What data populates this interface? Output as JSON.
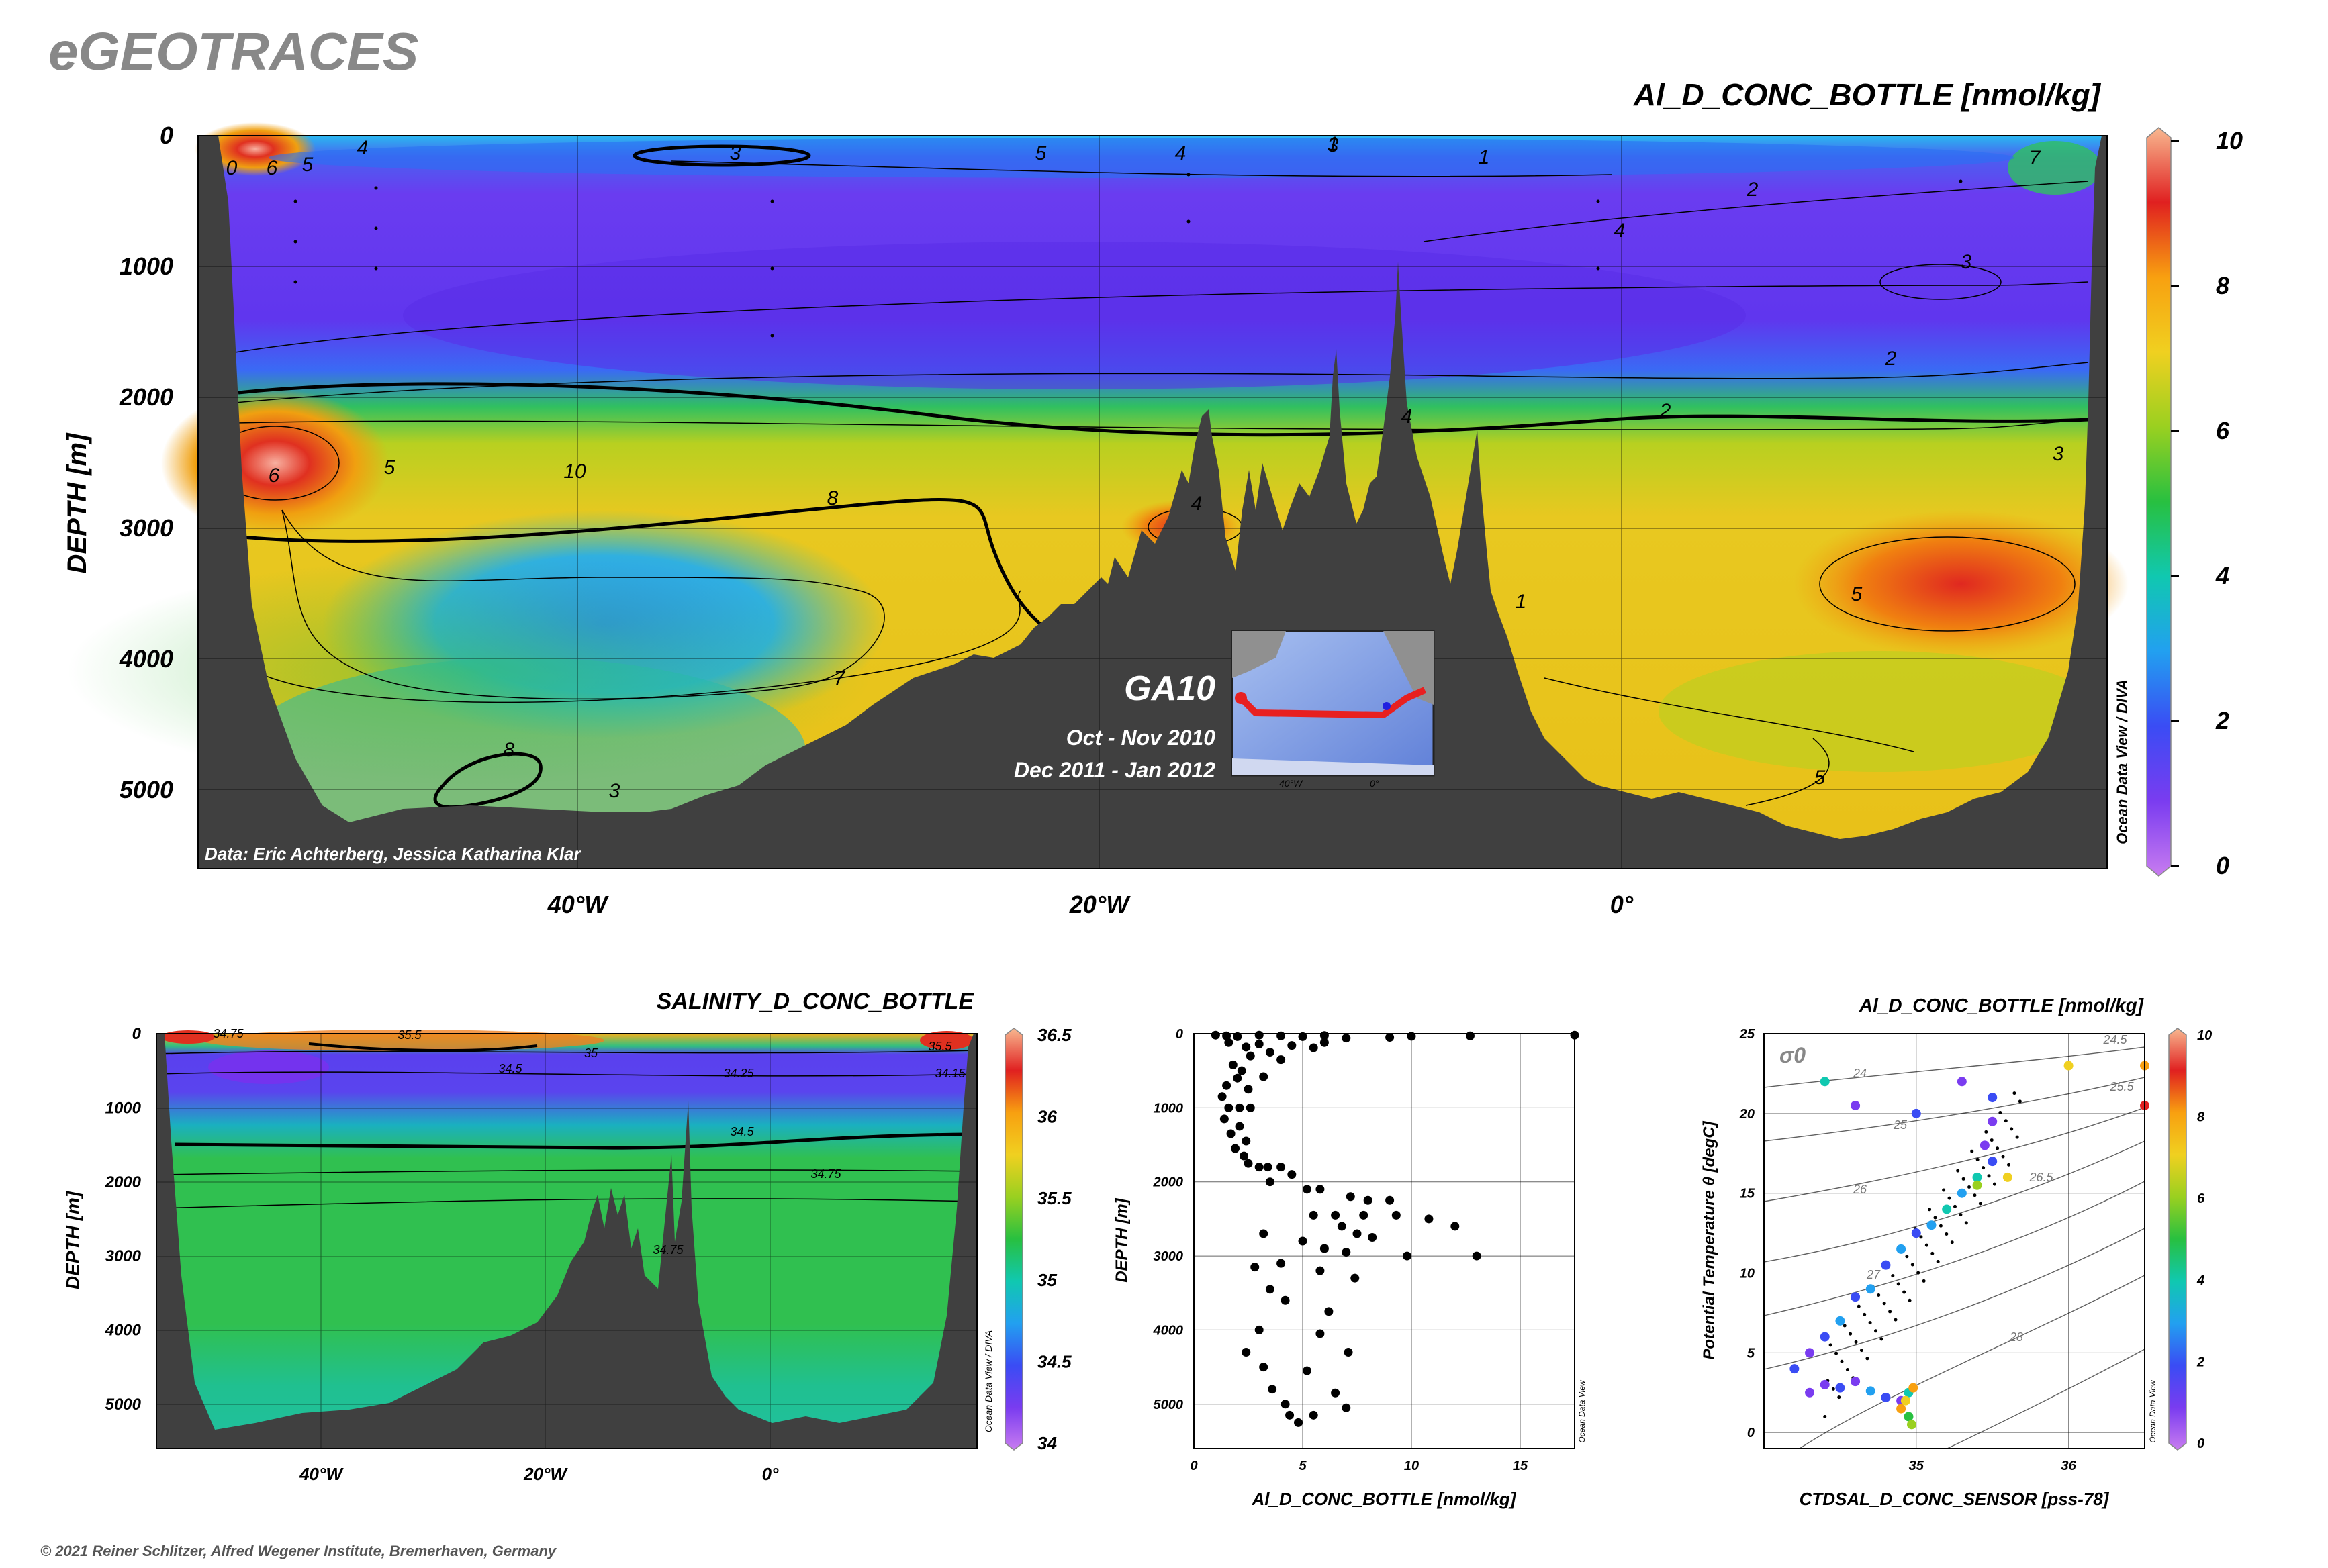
{
  "header": {
    "logo": "eGEOTRACES",
    "copyright": "© 2021 Reiner Schlitzer, Alfred Wegener Institute, Bremerhaven, Germany"
  },
  "colors": {
    "land": "#404040",
    "scale": [
      "#c87cf0",
      "#7a3cf0",
      "#3a4cf4",
      "#22a0f0",
      "#10c8b0",
      "#28c040",
      "#9ad020",
      "#f0d020",
      "#f8a010",
      "#e02020",
      "#f8b890"
    ]
  },
  "chart_data": [
    {
      "type": "heatmap",
      "id": "main-section",
      "title": "Al_D_CONC_BOTTLE [nmol/kg]",
      "ylabel": "DEPTH [m]",
      "x_ticks": [
        "40°W",
        "20°W",
        "0°"
      ],
      "y_ticks": [
        "0",
        "1000",
        "2000",
        "3000",
        "4000",
        "5000"
      ],
      "ylim": [
        0,
        5600
      ],
      "colorbar": {
        "min": 0,
        "max": 10,
        "ticks": [
          "0",
          "2",
          "4",
          "6",
          "8",
          "10"
        ]
      },
      "contour_labels": [
        "0",
        "6",
        "5",
        "4",
        "3",
        "5",
        "4",
        "3",
        "1",
        "2",
        "4",
        "3",
        "2",
        "2",
        "3",
        "4",
        "6",
        "5",
        "10",
        "8",
        "1",
        "5",
        "7",
        "8",
        "3",
        "5",
        "4",
        "7",
        "1"
      ],
      "credit": "Data: Eric Achterberg, Jessica Katharina Klar",
      "watermark": "Ocean Data View / DIVA",
      "inset": {
        "cruise": "GA10",
        "dates": [
          "Oct - Nov 2010",
          "Dec 2011 - Jan 2012"
        ],
        "ticks": [
          "40°W",
          "0°"
        ]
      }
    },
    {
      "type": "heatmap",
      "id": "salinity-section",
      "title": "SALINITY_D_CONC_BOTTLE",
      "ylabel": "DEPTH [m]",
      "x_ticks": [
        "40°W",
        "20°W",
        "0°"
      ],
      "y_ticks": [
        "0",
        "1000",
        "2000",
        "3000",
        "4000",
        "5000"
      ],
      "colorbar": {
        "min": 34,
        "max": 36.5,
        "ticks": [
          "34",
          "34.5",
          "35",
          "35.5",
          "36",
          "36.5"
        ]
      },
      "contour_labels": [
        "34.75",
        "35.5",
        "35",
        "34.5",
        "34.25",
        "35.5",
        "34.15",
        "34.5",
        "34.75",
        "34.75"
      ],
      "watermark": "Ocean Data View / DIVA"
    },
    {
      "type": "scatter",
      "id": "depth-profile",
      "xlabel": "Al_D_CONC_BOTTLE [nmol/kg]",
      "ylabel": "DEPTH [m]",
      "x_ticks": [
        "0",
        "5",
        "10",
        "15"
      ],
      "y_ticks": [
        "0",
        "1000",
        "2000",
        "3000",
        "4000",
        "5000"
      ],
      "xlim": [
        0,
        17.5
      ],
      "ylim": [
        0,
        5600
      ],
      "points": [
        [
          1.0,
          20
        ],
        [
          1.5,
          30
        ],
        [
          2.0,
          40
        ],
        [
          3.0,
          20
        ],
        [
          4.0,
          30
        ],
        [
          5.0,
          40
        ],
        [
          6.0,
          25
        ],
        [
          7.0,
          60
        ],
        [
          9.0,
          50
        ],
        [
          10.0,
          35
        ],
        [
          12.7,
          30
        ],
        [
          17.5,
          20
        ],
        [
          1.6,
          120
        ],
        [
          2.4,
          180
        ],
        [
          3.0,
          140
        ],
        [
          4.5,
          160
        ],
        [
          5.5,
          190
        ],
        [
          6.0,
          120
        ],
        [
          3.5,
          250
        ],
        [
          2.6,
          300
        ],
        [
          4.0,
          350
        ],
        [
          1.8,
          420
        ],
        [
          2.2,
          500
        ],
        [
          2.0,
          600
        ],
        [
          3.2,
          580
        ],
        [
          1.5,
          700
        ],
        [
          2.5,
          750
        ],
        [
          1.3,
          850
        ],
        [
          1.6,
          1000
        ],
        [
          2.1,
          1000
        ],
        [
          2.6,
          1000
        ],
        [
          1.4,
          1150
        ],
        [
          2.1,
          1250
        ],
        [
          1.7,
          1350
        ],
        [
          2.4,
          1450
        ],
        [
          1.9,
          1550
        ],
        [
          2.3,
          1650
        ],
        [
          2.5,
          1750
        ],
        [
          3.0,
          1800
        ],
        [
          3.4,
          1800
        ],
        [
          4.0,
          1800
        ],
        [
          4.5,
          1900
        ],
        [
          3.5,
          2000
        ],
        [
          5.2,
          2100
        ],
        [
          5.8,
          2100
        ],
        [
          7.2,
          2200
        ],
        [
          8.0,
          2250
        ],
        [
          9.0,
          2250
        ],
        [
          5.5,
          2450
        ],
        [
          6.5,
          2450
        ],
        [
          7.8,
          2450
        ],
        [
          9.3,
          2450
        ],
        [
          10.8,
          2500
        ],
        [
          6.8,
          2600
        ],
        [
          7.5,
          2700
        ],
        [
          8.2,
          2750
        ],
        [
          12.0,
          2600
        ],
        [
          3.2,
          2700
        ],
        [
          5.0,
          2800
        ],
        [
          6.0,
          2900
        ],
        [
          7.0,
          2950
        ],
        [
          9.8,
          3000
        ],
        [
          13.0,
          3000
        ],
        [
          4.0,
          3100
        ],
        [
          2.8,
          3150
        ],
        [
          5.8,
          3200
        ],
        [
          7.4,
          3300
        ],
        [
          3.5,
          3450
        ],
        [
          4.2,
          3600
        ],
        [
          6.2,
          3750
        ],
        [
          3.0,
          4000
        ],
        [
          5.8,
          4050
        ],
        [
          2.4,
          4300
        ],
        [
          7.1,
          4300
        ],
        [
          3.2,
          4500
        ],
        [
          5.2,
          4550
        ],
        [
          3.6,
          4800
        ],
        [
          6.5,
          4850
        ],
        [
          4.2,
          5000
        ],
        [
          5.5,
          5150
        ],
        [
          4.8,
          5250
        ],
        [
          4.4,
          5150
        ],
        [
          7.0,
          5050
        ]
      ],
      "watermark": "Ocean Data View"
    },
    {
      "type": "scatter",
      "id": "ts-diagram",
      "title": "Al_D_CONC_BOTTLE [nmol/kg]",
      "xlabel": "CTDSAL_D_CONC_SENSOR [pss-78]",
      "ylabel": "Potential Temperature θ [degC]",
      "x_ticks": [
        "35",
        "36"
      ],
      "y_ticks": [
        "0",
        "5",
        "10",
        "15",
        "20",
        "25"
      ],
      "xlim": [
        34.0,
        36.5
      ],
      "ylim": [
        -1,
        25
      ],
      "sigma_label": "σ0",
      "isopycnals": [
        "24",
        "24.5",
        "25",
        "25.5",
        "26",
        "26.5",
        "27",
        "28"
      ],
      "colorbar": {
        "min": 0,
        "max": 10,
        "ticks": [
          "0",
          "2",
          "4",
          "6",
          "8",
          "10"
        ]
      },
      "points": [
        [
          34.3,
          2.5,
          1
        ],
        [
          34.4,
          3.0,
          1
        ],
        [
          34.5,
          2.8,
          2
        ],
        [
          34.6,
          3.2,
          1
        ],
        [
          34.7,
          2.6,
          3
        ],
        [
          34.8,
          2.2,
          2
        ],
        [
          34.9,
          2.0,
          1
        ],
        [
          34.95,
          2.5,
          4
        ],
        [
          34.9,
          1.5,
          8
        ],
        [
          34.93,
          2.0,
          7
        ],
        [
          34.95,
          1.0,
          5
        ],
        [
          34.98,
          2.8,
          8
        ],
        [
          34.97,
          0.5,
          6
        ],
        [
          34.2,
          4.0,
          2
        ],
        [
          34.3,
          5.0,
          1
        ],
        [
          34.4,
          6.0,
          2
        ],
        [
          34.5,
          7.0,
          3
        ],
        [
          34.6,
          8.5,
          2
        ],
        [
          34.7,
          9.0,
          3
        ],
        [
          34.8,
          10.5,
          2
        ],
        [
          34.9,
          11.5,
          3
        ],
        [
          35.0,
          12.5,
          2
        ],
        [
          35.1,
          13.0,
          3
        ],
        [
          35.2,
          14.0,
          4
        ],
        [
          35.3,
          15.0,
          3
        ],
        [
          35.4,
          16.0,
          4
        ],
        [
          35.5,
          17.0,
          2
        ],
        [
          35.45,
          18.0,
          1
        ],
        [
          35.5,
          19.5,
          1
        ],
        [
          35.5,
          21.0,
          2
        ],
        [
          35.3,
          22.0,
          1
        ],
        [
          34.6,
          20.5,
          1
        ],
        [
          35.4,
          15.5,
          6
        ],
        [
          35.6,
          16.0,
          7
        ],
        [
          36.0,
          23.0,
          7
        ],
        [
          36.5,
          23.0,
          8
        ],
        [
          36.5,
          20.5,
          9
        ],
        [
          34.4,
          22.0,
          4
        ],
        [
          35.0,
          20.0,
          2
        ]
      ],
      "watermark": "Ocean Data View"
    }
  ]
}
